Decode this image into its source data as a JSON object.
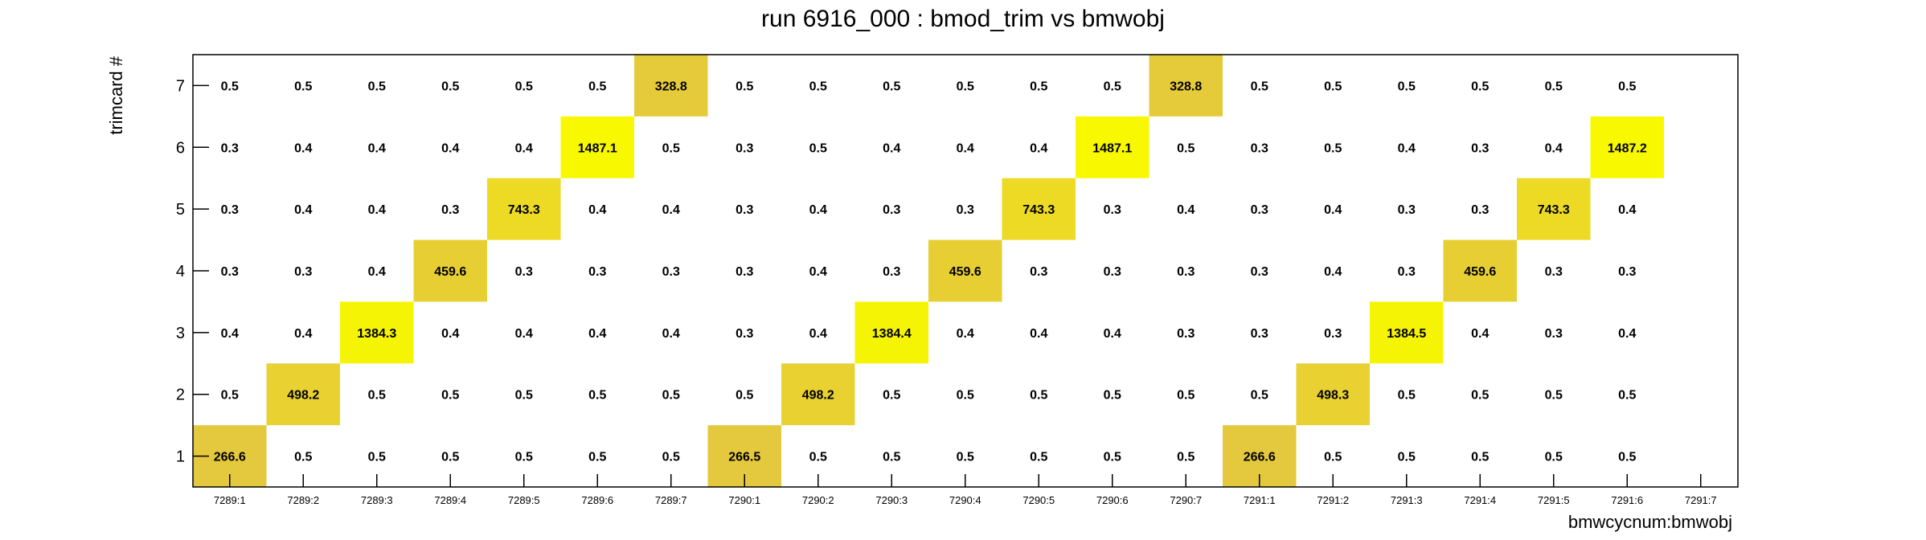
{
  "chart_data": {
    "type": "heatmap",
    "title": "run 6916_000 : bmod_trim vs bmwobj",
    "xlabel": "bmwcycnum:bmwobj",
    "ylabel": "trimcard #",
    "x_categories": [
      "7289:1",
      "7289:2",
      "7289:3",
      "7289:4",
      "7289:5",
      "7289:6",
      "7289:7",
      "7290:1",
      "7290:2",
      "7290:3",
      "7290:4",
      "7290:5",
      "7290:6",
      "7290:7",
      "7291:1",
      "7291:2",
      "7291:3",
      "7291:4",
      "7291:5",
      "7291:6",
      "7291:7"
    ],
    "y_categories": [
      "1",
      "2",
      "3",
      "4",
      "5",
      "6",
      "7"
    ],
    "grid": false,
    "colors": {
      "low": "#e0bd4a",
      "high": "#f8f800"
    },
    "z": [
      [
        "266.6",
        "0.5",
        "0.5",
        "0.5",
        "0.5",
        "0.5",
        "0.5",
        "266.5",
        "0.5",
        "0.5",
        "0.5",
        "0.5",
        "0.5",
        "0.5",
        "266.6",
        "0.5",
        "0.5",
        "0.5",
        "0.5",
        "0.5",
        ""
      ],
      [
        "0.5",
        "498.2",
        "0.5",
        "0.5",
        "0.5",
        "0.5",
        "0.5",
        "0.5",
        "498.2",
        "0.5",
        "0.5",
        "0.5",
        "0.5",
        "0.5",
        "0.5",
        "498.3",
        "0.5",
        "0.5",
        "0.5",
        "0.5",
        ""
      ],
      [
        "0.4",
        "0.4",
        "1384.3",
        "0.4",
        "0.4",
        "0.4",
        "0.4",
        "0.3",
        "0.4",
        "1384.4",
        "0.4",
        "0.4",
        "0.4",
        "0.3",
        "0.3",
        "0.3",
        "1384.5",
        "0.4",
        "0.3",
        "0.4",
        ""
      ],
      [
        "0.3",
        "0.3",
        "0.4",
        "459.6",
        "0.3",
        "0.3",
        "0.3",
        "0.3",
        "0.4",
        "0.3",
        "459.6",
        "0.3",
        "0.3",
        "0.3",
        "0.3",
        "0.4",
        "0.3",
        "459.6",
        "0.3",
        "0.3",
        ""
      ],
      [
        "0.3",
        "0.4",
        "0.4",
        "0.3",
        "743.3",
        "0.4",
        "0.4",
        "0.3",
        "0.4",
        "0.3",
        "0.3",
        "743.3",
        "0.3",
        "0.4",
        "0.3",
        "0.4",
        "0.3",
        "0.3",
        "743.3",
        "0.4",
        ""
      ],
      [
        "0.3",
        "0.4",
        "0.4",
        "0.4",
        "0.4",
        "1487.1",
        "0.5",
        "0.3",
        "0.5",
        "0.4",
        "0.4",
        "0.4",
        "1487.1",
        "0.5",
        "0.3",
        "0.5",
        "0.4",
        "0.3",
        "0.4",
        "1487.2",
        ""
      ],
      [
        "0.5",
        "0.5",
        "0.5",
        "0.5",
        "0.5",
        "0.5",
        "328.8",
        "0.5",
        "0.5",
        "0.5",
        "0.5",
        "0.5",
        "0.5",
        "328.8",
        "0.5",
        "0.5",
        "0.5",
        "0.5",
        "0.5",
        "0.5",
        ""
      ]
    ]
  }
}
